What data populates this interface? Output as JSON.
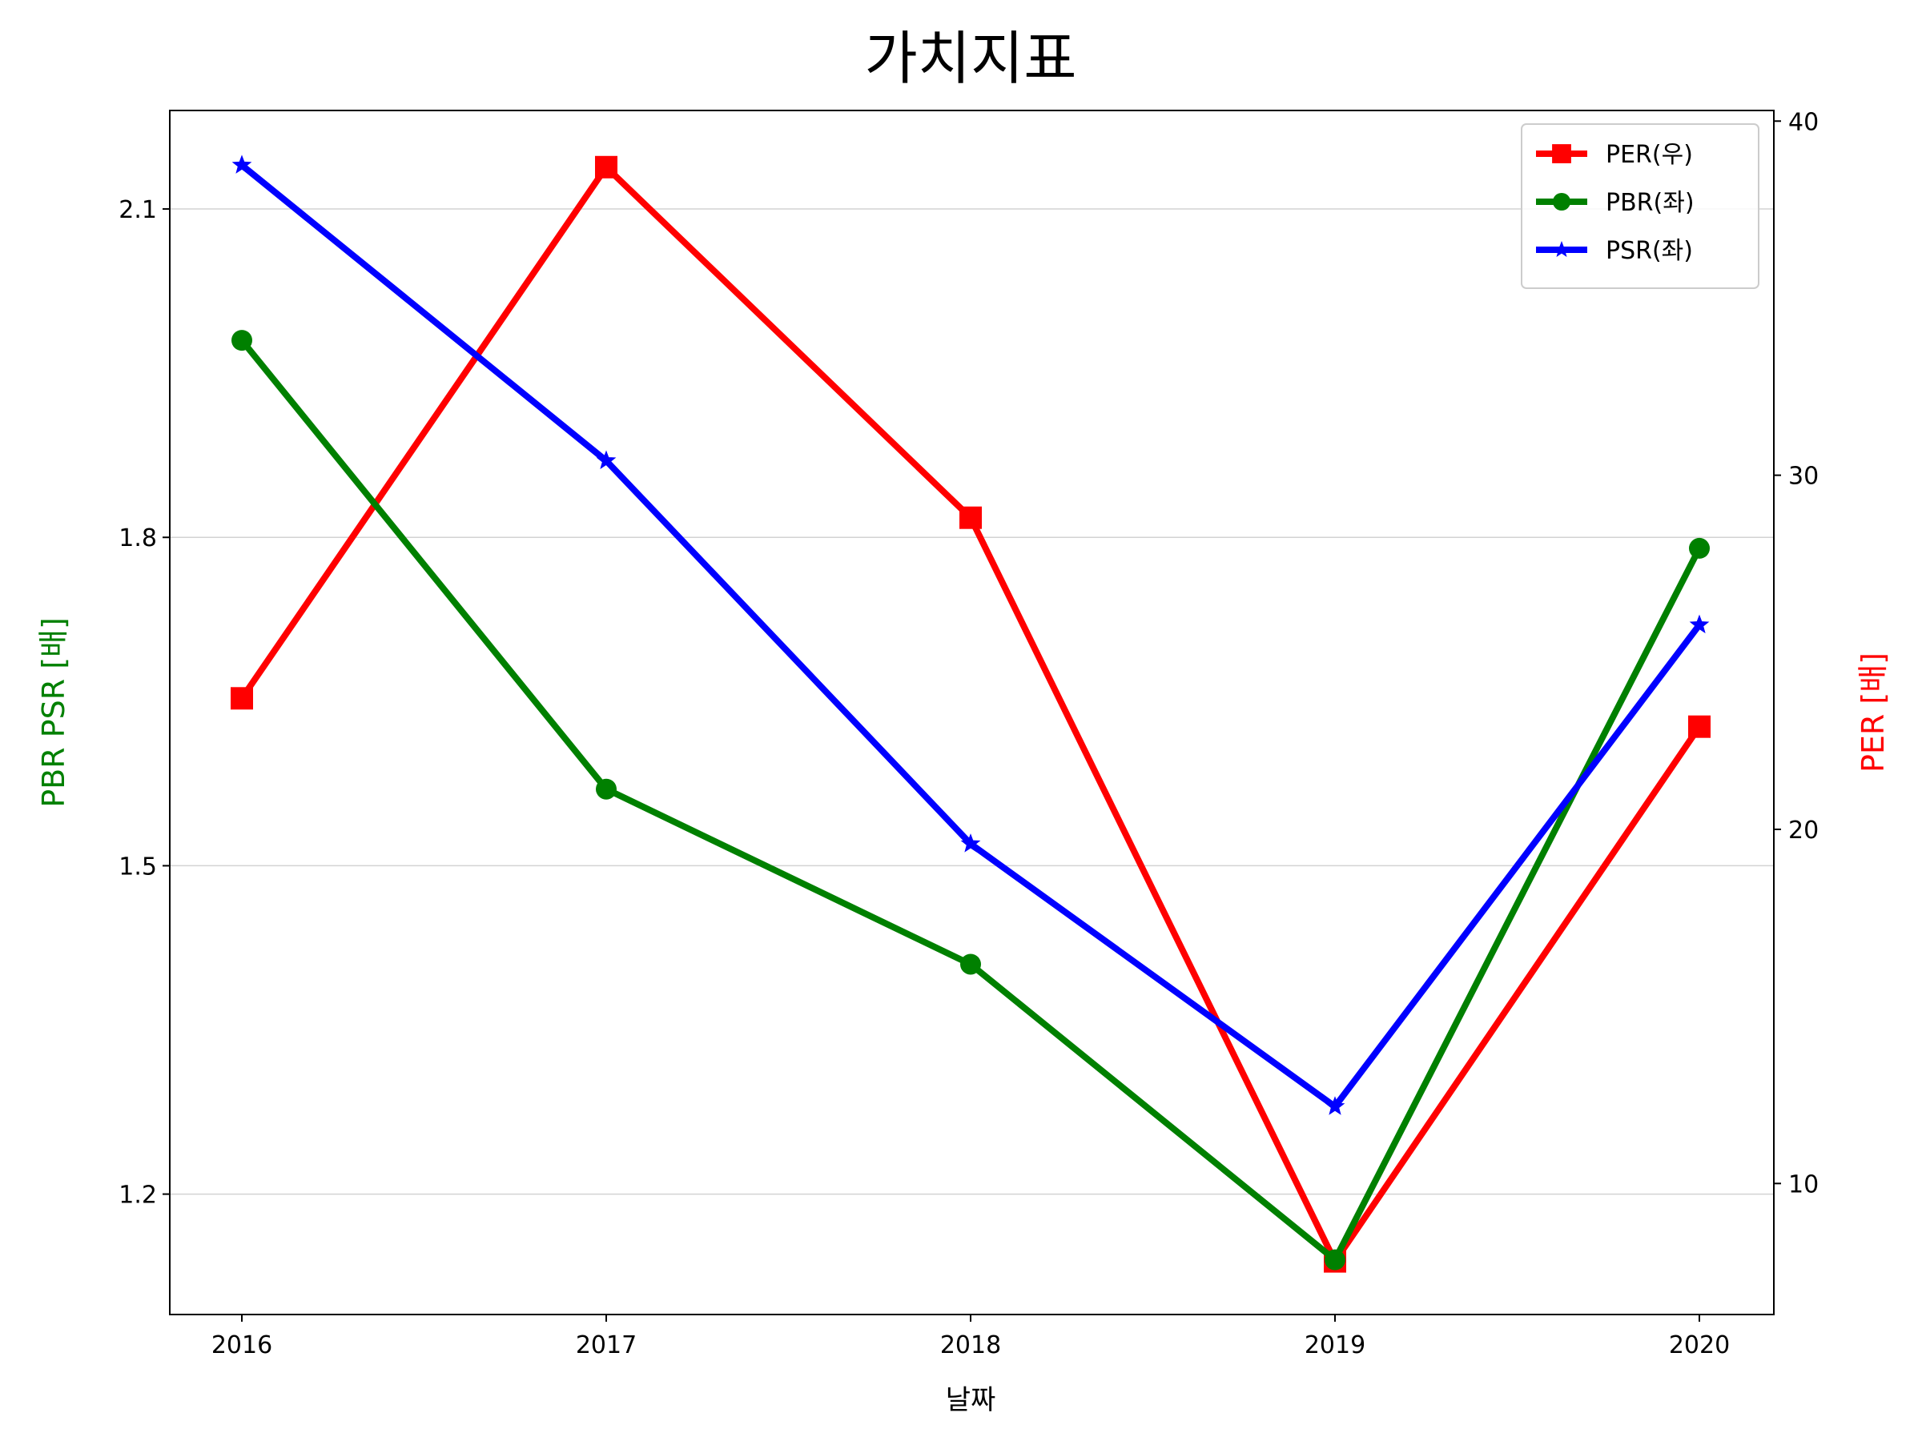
{
  "chart_data": {
    "type": "line",
    "title": "가치지표",
    "xlabel": "날짜",
    "ylabel_left": "PBR PSR [배]",
    "ylabel_right": "PER [배]",
    "categories": [
      "2016",
      "2017",
      "2018",
      "2019",
      "2020"
    ],
    "ylim_left": [
      1.09,
      2.19
    ],
    "ylim_right": [
      6.3,
      40.3
    ],
    "yticks_left": [
      "1.2",
      "1.5",
      "1.8",
      "2.1"
    ],
    "yticks_right": [
      "10",
      "20",
      "30",
      "40"
    ],
    "grid": "horizontal (left axis)",
    "legend_placement": "top-right",
    "series": [
      {
        "name": "PER(우)",
        "axis": "right",
        "color": "#ff0000",
        "marker": "square",
        "values": [
          23.7,
          38.7,
          28.8,
          7.8,
          22.9
        ]
      },
      {
        "name": "PBR(좌)",
        "axis": "left",
        "color": "#008000",
        "marker": "circle",
        "values": [
          1.98,
          1.57,
          1.41,
          1.14,
          1.79
        ]
      },
      {
        "name": "PSR(좌)",
        "axis": "left",
        "color": "#0000ff",
        "marker": "star",
        "values": [
          2.14,
          1.87,
          1.52,
          1.28,
          1.72
        ]
      }
    ],
    "colors": {
      "left_label": "#008000",
      "right_label": "#ff0000"
    }
  }
}
